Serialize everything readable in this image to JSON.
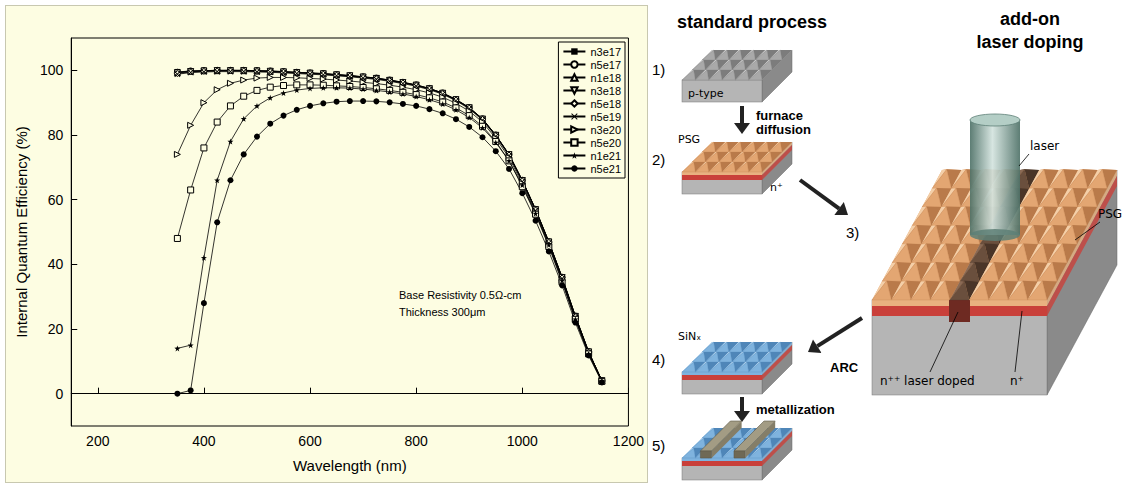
{
  "chart_data": {
    "type": "line",
    "xlabel": "Wavelength (nm)",
    "ylabel": "Internal Quantum Efficiency (%)",
    "annotations": [
      "Base Resistivity 0.5Ω-cm",
      "Thickness 300μm"
    ],
    "x": [
      350,
      375,
      400,
      425,
      450,
      475,
      500,
      525,
      550,
      575,
      600,
      625,
      650,
      675,
      700,
      725,
      750,
      775,
      800,
      825,
      850,
      875,
      900,
      925,
      950,
      975,
      1000,
      1025,
      1050,
      1075,
      1100,
      1125,
      1150
    ],
    "series": [
      {
        "name": "n3e17",
        "color": "#000000",
        "marker": "square",
        "values": [
          99.5,
          99.8,
          99.9,
          100,
          100,
          100,
          99.9,
          99.8,
          99.6,
          99.4,
          99.2,
          99,
          98.7,
          98.4,
          98,
          97.6,
          97,
          96.3,
          95.5,
          94.4,
          93,
          91,
          88.5,
          85,
          80,
          74,
          66,
          57,
          47,
          36,
          24,
          13,
          4
        ]
      },
      {
        "name": "n5e17",
        "color": "#000000",
        "marker": "circle_open",
        "values": [
          99.4,
          99.8,
          99.9,
          100,
          100,
          100,
          99.9,
          99.8,
          99.6,
          99.4,
          99.2,
          99,
          98.7,
          98.4,
          98,
          97.6,
          97,
          96.3,
          95.5,
          94.4,
          93,
          91,
          88.5,
          85,
          80,
          74,
          66,
          57,
          47,
          36,
          24,
          13,
          4
        ]
      },
      {
        "name": "n1e18",
        "color": "#000000",
        "marker": "triangle_open",
        "values": [
          99.3,
          99.7,
          99.9,
          99.9,
          100,
          99.9,
          99.8,
          99.7,
          99.5,
          99.3,
          99.1,
          98.9,
          98.6,
          98.3,
          97.9,
          97.5,
          96.9,
          96.2,
          95.4,
          94.3,
          92.9,
          90.9,
          88.4,
          84.9,
          79.9,
          73.9,
          65.9,
          56.9,
          46.9,
          35.9,
          23.9,
          12.9,
          4
        ]
      },
      {
        "name": "n3e18",
        "color": "#000000",
        "marker": "triangle_down_open",
        "values": [
          99.2,
          99.6,
          99.8,
          99.9,
          99.9,
          99.9,
          99.8,
          99.7,
          99.5,
          99.3,
          99.1,
          98.9,
          98.6,
          98.3,
          97.9,
          97.5,
          96.9,
          96.2,
          95.4,
          94.3,
          92.9,
          90.9,
          88.4,
          84.9,
          79.9,
          73.9,
          65.9,
          56.9,
          46.9,
          35.9,
          23.9,
          12.9,
          4
        ]
      },
      {
        "name": "n5e18",
        "color": "#000000",
        "marker": "diamond_open",
        "values": [
          99,
          99.5,
          99.7,
          99.8,
          99.8,
          99.8,
          99.7,
          99.6,
          99.4,
          99.2,
          99,
          98.8,
          98.5,
          98.2,
          97.8,
          97.4,
          96.8,
          96.1,
          95.3,
          94.2,
          92.8,
          90.8,
          88.3,
          84.8,
          79.8,
          73.8,
          65.8,
          56.8,
          46.8,
          35.8,
          23.8,
          12.8,
          3.9
        ]
      },
      {
        "name": "n5e19",
        "color": "#000000",
        "marker": "x",
        "values": [
          98.8,
          99.3,
          99.5,
          99.6,
          99.6,
          99.6,
          99.5,
          99.4,
          99.2,
          99,
          98.8,
          98.6,
          98.3,
          98,
          97.6,
          97.2,
          96.6,
          95.9,
          95.1,
          94,
          92.6,
          90.6,
          88.1,
          84.6,
          79.6,
          73.6,
          65.6,
          56.6,
          46.6,
          35.6,
          23.6,
          12.6,
          3.9
        ]
      },
      {
        "name": "n3e20",
        "color": "#000000",
        "marker": "triangle_right_open",
        "values": [
          74,
          83,
          90,
          94,
          96,
          97,
          97.6,
          97.8,
          97.8,
          97.7,
          97.5,
          97.3,
          97,
          96.7,
          96.3,
          95.9,
          95.4,
          94.8,
          94,
          93,
          91.7,
          89.8,
          87.4,
          84,
          79,
          73,
          65,
          56,
          46,
          35,
          23,
          12.5,
          4
        ]
      },
      {
        "name": "n5e20",
        "color": "#000000",
        "marker": "square_open",
        "values": [
          48,
          63,
          76,
          84,
          89,
          92,
          93.8,
          94.8,
          95.3,
          95.5,
          95.5,
          95.4,
          95.2,
          95,
          94.7,
          94.3,
          93.8,
          93.2,
          92.5,
          91.5,
          90.2,
          88.4,
          86,
          82.7,
          78,
          72,
          64,
          55.5,
          45.5,
          34.5,
          23,
          12.3,
          3.8
        ]
      },
      {
        "name": "n1e21",
        "color": "#000000",
        "marker": "star",
        "values": [
          14,
          15,
          42,
          66,
          78,
          85,
          89,
          91.5,
          93,
          93.9,
          94.4,
          94.6,
          94.6,
          94.5,
          94.2,
          93.8,
          93.3,
          92.7,
          91.9,
          90.9,
          89.6,
          87.8,
          85.4,
          82.2,
          77.7,
          72,
          64.5,
          55.7,
          46,
          35,
          23,
          12.3,
          3.9
        ]
      },
      {
        "name": "n5e21",
        "color": "#000000",
        "marker": "circle",
        "values": [
          0,
          1,
          28,
          53,
          66,
          74,
          79.5,
          83.5,
          86,
          87.8,
          89,
          89.8,
          90.3,
          90.5,
          90.5,
          90.4,
          90.1,
          89.6,
          89,
          88,
          86.7,
          84.9,
          82.5,
          79.3,
          75,
          69.5,
          62,
          53.5,
          44,
          33.5,
          22,
          11.8,
          3.5
        ]
      }
    ],
    "xlim": [
      150,
      1200
    ],
    "xticks": [
      200,
      400,
      600,
      800,
      1000,
      1200
    ],
    "ylim": [
      -10,
      110
    ],
    "yticks": [
      0,
      20,
      40,
      60,
      80,
      100
    ],
    "grid": false,
    "legend": "top-right"
  },
  "diagram": {
    "headers": {
      "standard": "standard process",
      "addon": [
        "add-on",
        "laser doping"
      ]
    },
    "steps": [
      {
        "number": "1)",
        "labels": [
          "p-type"
        ],
        "next": [
          "furnace",
          "diffusion"
        ]
      },
      {
        "number": "2)",
        "labels": [
          "PSG",
          "n⁺"
        ]
      },
      {
        "number": "3)",
        "labels": [
          "laser",
          "PSG",
          "n⁺⁺ laser doped",
          "n⁺"
        ],
        "next": [
          "ARC"
        ]
      },
      {
        "number": "4)",
        "labels": [
          "SiNₓ"
        ],
        "next": [
          "metallization"
        ]
      },
      {
        "number": "5)",
        "labels": []
      }
    ]
  }
}
